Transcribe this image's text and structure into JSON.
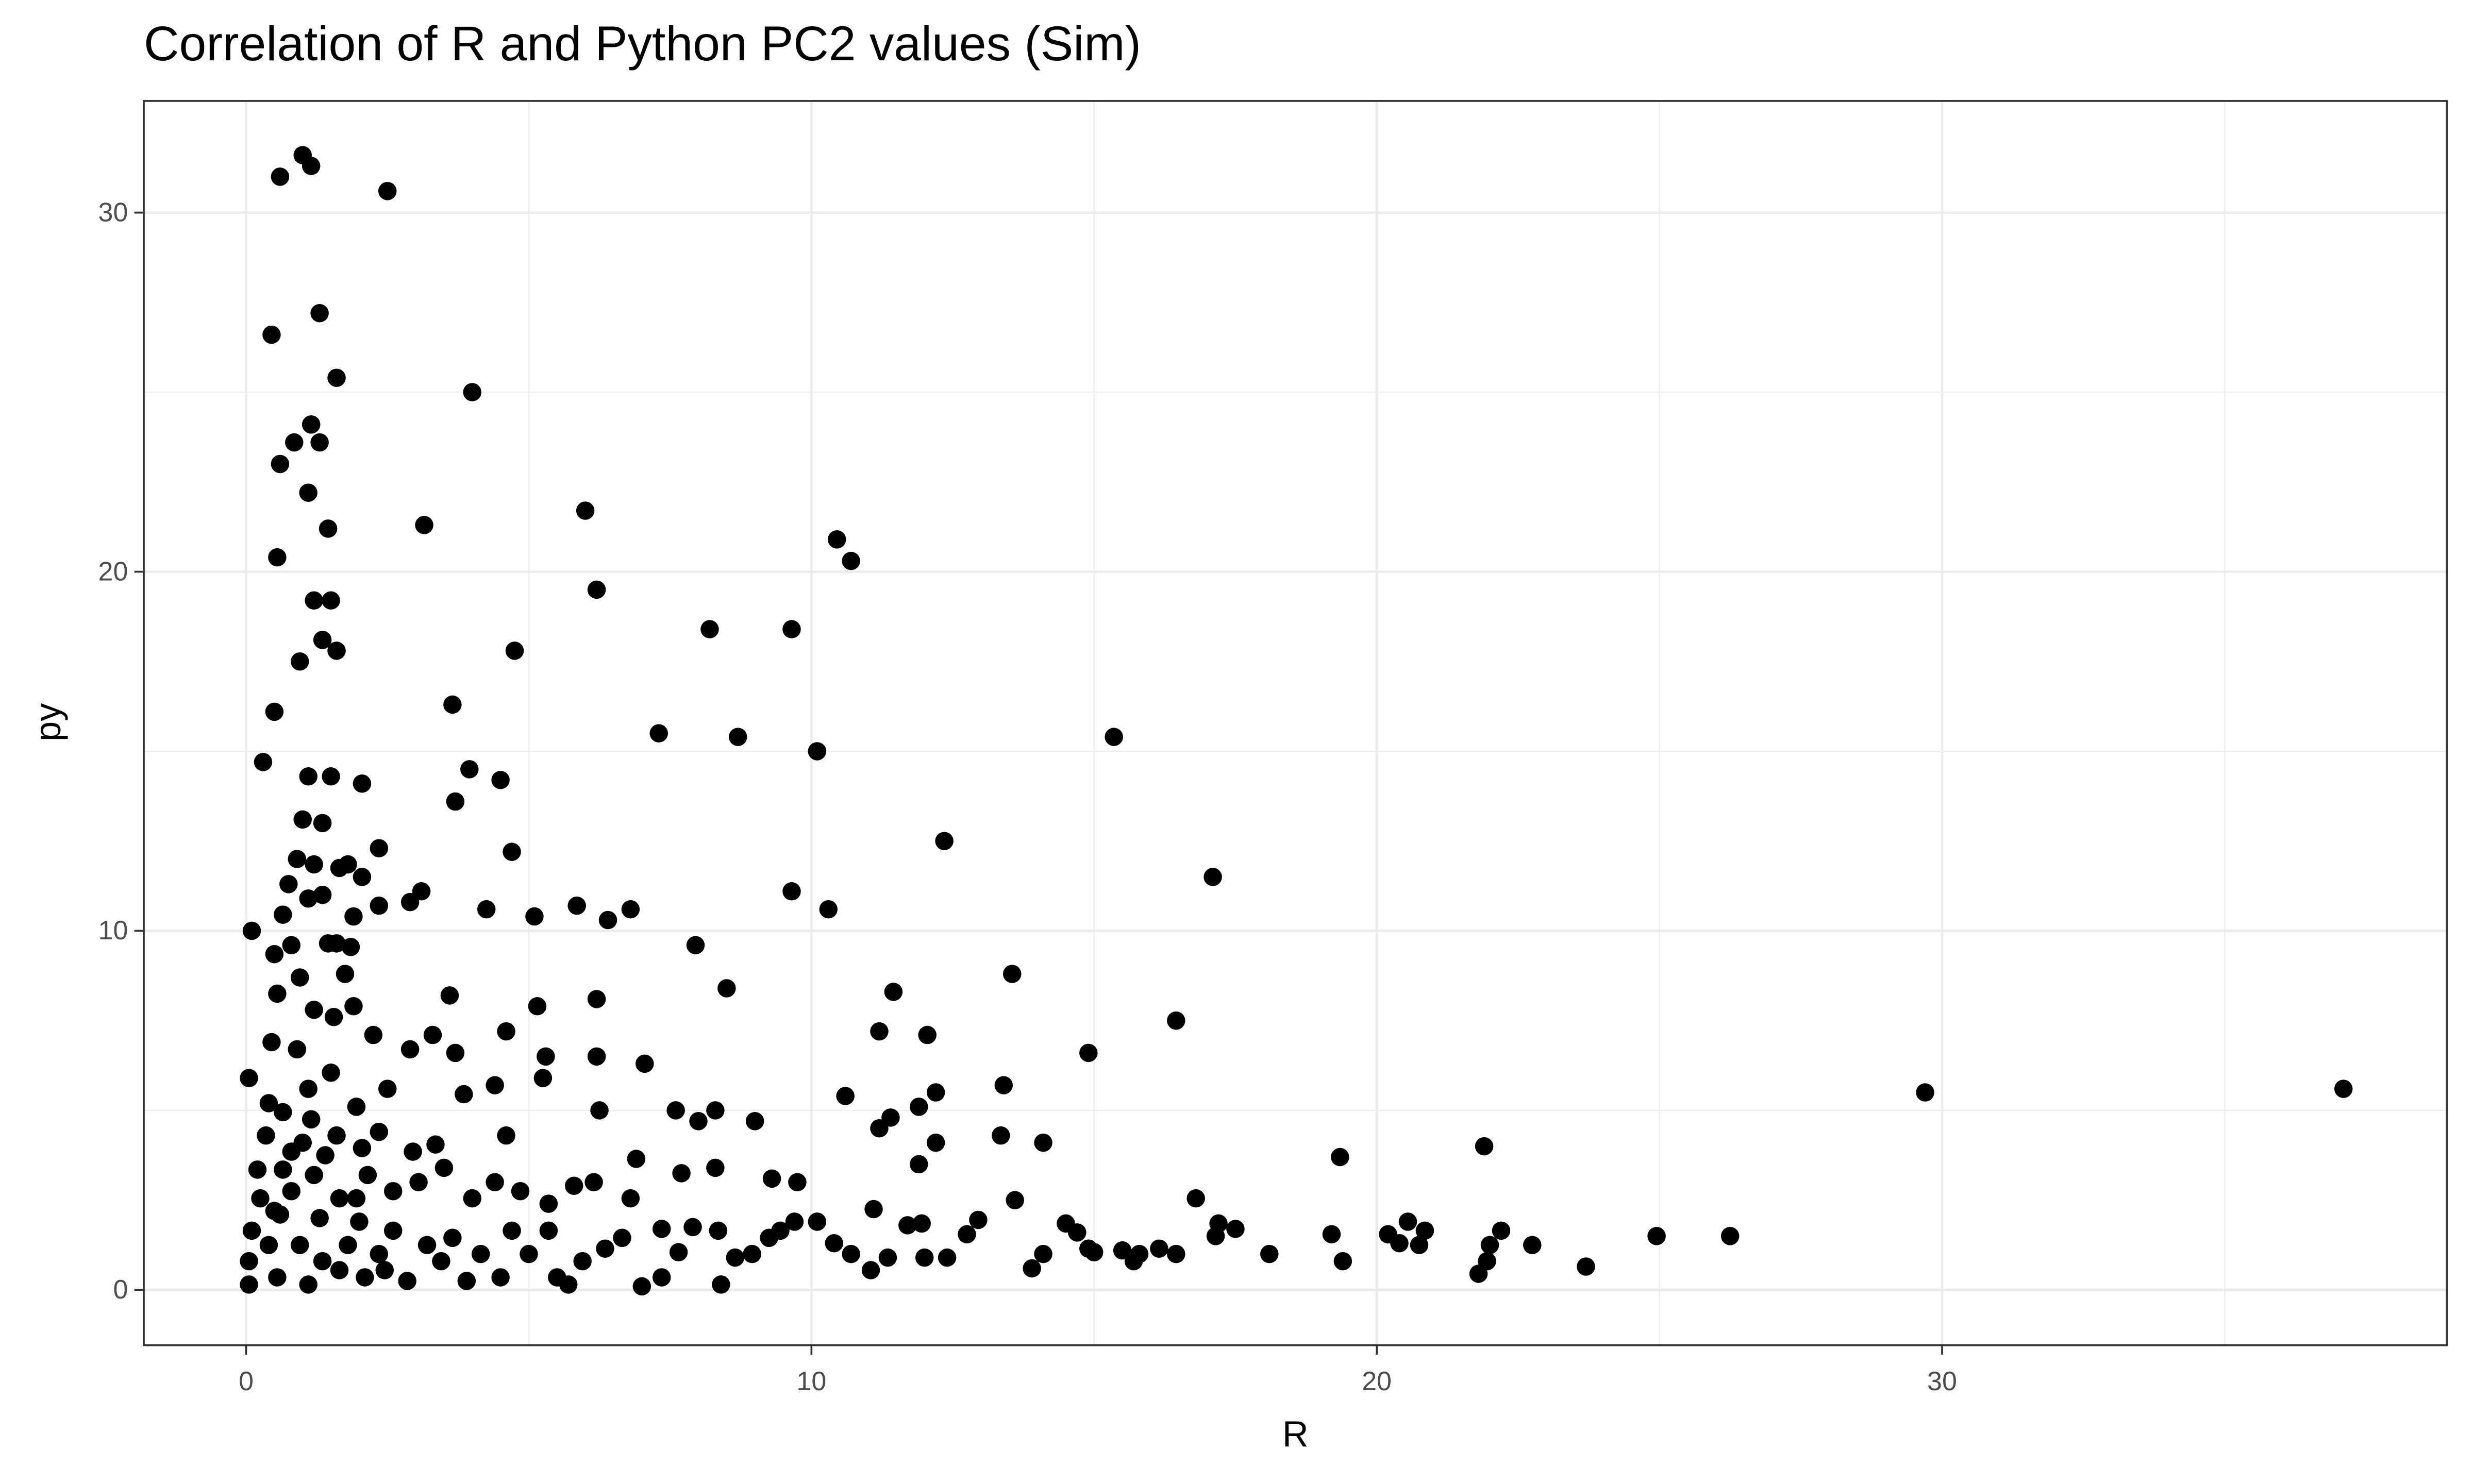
{
  "chart_data": {
    "type": "scatter",
    "title": "Correlation of R and Python PC2 values (Sim)",
    "x_label": "R",
    "y_label": "py",
    "color": "#000000",
    "grid": true,
    "xlim": [
      -1.81,
      38.93
    ],
    "ylim": [
      -1.54,
      33.11
    ],
    "xticks": [
      0,
      10,
      20,
      30
    ],
    "yticks": [
      0,
      10,
      20,
      30
    ],
    "xminorticks": [
      5,
      15,
      25,
      35
    ],
    "yminorticks": [
      5,
      15,
      25
    ],
    "x": [
      1.0,
      0.6,
      1.15,
      2.5,
      0.45,
      1.3,
      1.6,
      4.0,
      1.15,
      0.85,
      1.3,
      0.6,
      1.1,
      1.45,
      3.15,
      6.0,
      10.45,
      10.7,
      0.55,
      1.2,
      1.5,
      6.2,
      8.2,
      9.65,
      1.35,
      1.6,
      4.75,
      0.95,
      3.65,
      0.5,
      7.3,
      8.7,
      15.35,
      10.1,
      0.3,
      3.95,
      4.5,
      2.05,
      3.7,
      12.35,
      4.7,
      2.35,
      17.1,
      9.65,
      3.1,
      2.9,
      5.85,
      6.8,
      10.3,
      4.25,
      5.1,
      6.4,
      2.35,
      0.1,
      7.95,
      13.55,
      11.45,
      8.5,
      3.6,
      6.2,
      5.15,
      16.45,
      11.2,
      12.05,
      4.6,
      3.3,
      2.25,
      14.9,
      5.3,
      6.2,
      3.7,
      2.9,
      7.05,
      13.4,
      29.7,
      37.1,
      12.2,
      10.6,
      3.85,
      4.4,
      5.25,
      7.6,
      8.3,
      8.0,
      9.0,
      11.4,
      11.9,
      6.25,
      11.2,
      13.35,
      14.1,
      12.2,
      4.6,
      21.9,
      11.9,
      19.35,
      8.3,
      6.9,
      13.6,
      16.8,
      13.9,
      14.1,
      14.5,
      14.7,
      14.9,
      15.0,
      15.5,
      15.7,
      15.8,
      16.15,
      16.45,
      17.2,
      17.5,
      17.15,
      18.1,
      19.2,
      19.4,
      20.2,
      20.55,
      20.75,
      20.85,
      20.4,
      21.8,
      21.95,
      22.0,
      22.2,
      22.75,
      23.7,
      24.95,
      26.25,
      12.4,
      12.0,
      11.7,
      11.95,
      11.35,
      11.05,
      11.1,
      12.75,
      12.95,
      10.4,
      10.7,
      10.1,
      9.7,
      9.45,
      9.25,
      8.95,
      8.65,
      8.4,
      8.35,
      7.9,
      7.65,
      7.35,
      7.0,
      7.35,
      6.65,
      6.35,
      5.95,
      5.7,
      5.5,
      5.35,
      5.0,
      4.7,
      4.5,
      4.15,
      3.9,
      3.65,
      3.45,
      3.2,
      2.85,
      2.6,
      2.35,
      2.1,
      9.75,
      9.3,
      7.7,
      6.8,
      6.15,
      5.8,
      5.35,
      4.85,
      4.4,
      4.0,
      3.5,
      3.05,
      2.6,
      2.15,
      2.95,
      3.35,
      1.95,
      2.5,
      1.15,
      1.6,
      1.95,
      0.05,
      0.1,
      0.05,
      0.05,
      0.2,
      0.25,
      0.35,
      0.4,
      0.45,
      0.55,
      0.5,
      0.65,
      0.75,
      0.9,
      1.0,
      1.1,
      1.5,
      1.35,
      1.2,
      1.1,
      0.8,
      0.95,
      1.2,
      1.55,
      0.9,
      1.1,
      1.5,
      0.65,
      0.8,
      1.2,
      1.65,
      0.6,
      0.95,
      1.35,
      0.55,
      1.1,
      1.8,
      1.65,
      0.8,
      0.4,
      1.6,
      1.85,
      1.9,
      1.8,
      1.65,
      2.05,
      1.9,
      1.75,
      1.35,
      1.45,
      0.5,
      0.65,
      1.0,
      1.4,
      2.05,
      2.35,
      1.3,
      2.0,
      2.45
    ],
    "values": [
      31.6,
      31.0,
      31.3,
      30.6,
      26.6,
      27.2,
      25.4,
      25.0,
      24.1,
      23.6,
      23.6,
      23.0,
      22.2,
      21.2,
      21.3,
      21.7,
      20.9,
      20.3,
      20.4,
      19.2,
      19.2,
      19.5,
      18.4,
      18.4,
      18.1,
      17.8,
      17.8,
      17.5,
      16.3,
      16.1,
      15.5,
      15.4,
      15.4,
      15.0,
      14.7,
      14.5,
      14.2,
      14.1,
      13.6,
      12.5,
      12.2,
      12.3,
      11.5,
      11.1,
      11.1,
      10.8,
      10.7,
      10.6,
      10.6,
      10.6,
      10.4,
      10.3,
      10.7,
      10.0,
      9.6,
      8.8,
      8.3,
      8.4,
      8.2,
      8.1,
      7.9,
      7.5,
      7.2,
      7.1,
      7.2,
      7.1,
      7.1,
      6.6,
      6.5,
      6.5,
      6.6,
      6.7,
      6.3,
      5.7,
      5.5,
      5.6,
      5.5,
      5.4,
      5.45,
      5.7,
      5.9,
      5.0,
      5.0,
      4.7,
      4.7,
      4.8,
      5.1,
      5.0,
      4.5,
      4.3,
      4.1,
      4.1,
      4.3,
      4.0,
      3.5,
      3.7,
      3.4,
      3.65,
      2.5,
      2.55,
      0.6,
      1.0,
      1.85,
      1.6,
      1.15,
      1.05,
      1.1,
      0.8,
      1.0,
      1.15,
      1.0,
      1.85,
      1.7,
      1.5,
      1.0,
      1.55,
      0.8,
      1.55,
      1.9,
      1.25,
      1.65,
      1.3,
      0.45,
      0.8,
      1.25,
      1.65,
      1.25,
      0.65,
      1.5,
      1.5,
      0.9,
      0.9,
      1.8,
      1.85,
      0.9,
      0.55,
      2.25,
      1.55,
      1.95,
      1.3,
      1.0,
      1.9,
      1.9,
      1.65,
      1.45,
      1.0,
      0.9,
      0.15,
      1.65,
      1.75,
      1.05,
      1.7,
      0.1,
      0.35,
      1.45,
      1.15,
      0.8,
      0.15,
      0.35,
      1.65,
      1.0,
      1.65,
      0.35,
      1.0,
      0.25,
      1.45,
      0.8,
      1.25,
      0.25,
      1.65,
      1.0,
      0.35,
      3.0,
      3.1,
      3.25,
      2.55,
      3.0,
      2.9,
      2.4,
      2.75,
      3.0,
      2.55,
      3.4,
      3.0,
      2.75,
      3.2,
      3.85,
      4.05,
      5.1,
      5.6,
      4.75,
      4.3,
      2.55,
      5.9,
      1.65,
      0.8,
      0.15,
      3.35,
      2.55,
      4.3,
      5.2,
      6.9,
      8.25,
      9.35,
      10.45,
      11.3,
      12.0,
      13.1,
      14.3,
      14.3,
      13.0,
      11.85,
      10.9,
      9.6,
      8.7,
      7.8,
      7.6,
      6.7,
      5.6,
      6.05,
      4.95,
      3.85,
      3.2,
      2.55,
      2.1,
      1.25,
      0.8,
      0.35,
      0.15,
      1.25,
      0.55,
      2.75,
      1.25,
      9.65,
      9.55,
      10.4,
      11.85,
      11.75,
      11.5,
      7.9,
      8.8,
      11.0,
      9.65,
      2.2,
      3.35,
      4.1,
      3.75,
      3.95,
      4.4,
      2.0,
      1.9,
      0.55
    ]
  }
}
